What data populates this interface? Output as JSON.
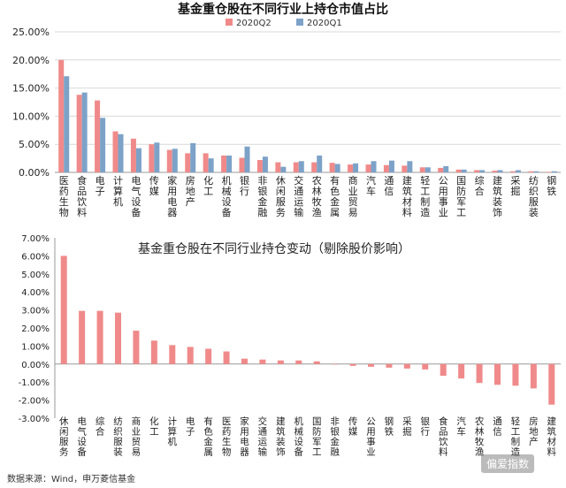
{
  "source_note": "数据来源：Wind，申万菱信基金",
  "watermark": "偏爱指数",
  "colors": {
    "q2": "#F08A8A",
    "q1": "#7DA2C8",
    "change": "#F08A8A",
    "axis": "#999999",
    "grid": "#d9d9d9"
  },
  "chart_data": [
    {
      "type": "bar",
      "title": "基金重仓股在不同行业上持仓市值占比",
      "legend_position": "top",
      "ylim": [
        0,
        25
      ],
      "yticks": [
        "0.00%",
        "5.00%",
        "10.00%",
        "15.00%",
        "20.00%",
        "25.00%"
      ],
      "grid": true,
      "categories": [
        "医药生物",
        "食品饮料",
        "电子",
        "计算机",
        "电气设备",
        "传媒",
        "家用电器",
        "房地产",
        "化工",
        "机械设备",
        "银行",
        "非银金融",
        "休闲服务",
        "交通运输",
        "农林牧渔",
        "有色金属",
        "商业贸易",
        "汽车",
        "通信",
        "建筑材料",
        "轻工制造",
        "公用事业",
        "国防军工",
        "综合",
        "建筑装饰",
        "采掘",
        "纺织服装",
        "钢铁"
      ],
      "series": [
        {
          "name": "2020Q2",
          "values": [
            20.0,
            13.8,
            12.8,
            7.3,
            6.0,
            5.0,
            4.0,
            3.4,
            3.4,
            3.0,
            2.6,
            2.2,
            1.8,
            1.8,
            1.8,
            1.7,
            1.4,
            1.4,
            1.3,
            1.2,
            0.9,
            0.8,
            0.5,
            0.4,
            0.3,
            0.2,
            0.2,
            0.1
          ]
        },
        {
          "name": "2020Q1",
          "values": [
            17.1,
            14.2,
            9.7,
            6.8,
            4.3,
            5.3,
            4.2,
            5.2,
            2.5,
            3.0,
            4.6,
            2.8,
            1.0,
            2.0,
            3.0,
            1.5,
            1.6,
            2.0,
            2.1,
            2.0,
            0.9,
            1.1,
            0.5,
            0.4,
            0.4,
            0.4,
            0.2,
            0.2
          ]
        }
      ]
    },
    {
      "type": "bar",
      "title": "基金重仓股在不同行业持仓变动（剔除股价影响）",
      "ylim": [
        -3,
        7
      ],
      "yticks": [
        "-3.00%",
        "-2.00%",
        "-1.00%",
        "0.00%",
        "1.00%",
        "2.00%",
        "3.00%",
        "4.00%",
        "5.00%",
        "6.00%",
        "7.00%"
      ],
      "categories": [
        "休闲服务",
        "电气设备",
        "综合",
        "纺织服装",
        "商业贸易",
        "化工",
        "计算机",
        "电子",
        "有色金属",
        "医药生物",
        "家用电器",
        "交通运输",
        "建筑装饰",
        "机械设备",
        "国防军工",
        "非银金融",
        "传媒",
        "公用事业",
        "钢铁",
        "采掘",
        "银行",
        "食品饮料",
        "汽车",
        "农林牧渔",
        "通信",
        "轻工制造",
        "房地产",
        "建筑材料"
      ],
      "values": [
        6.0,
        2.95,
        2.95,
        2.85,
        1.85,
        1.3,
        1.05,
        0.95,
        0.85,
        0.7,
        0.3,
        0.25,
        0.2,
        0.2,
        0.15,
        0.0,
        -0.1,
        -0.15,
        -0.2,
        -0.25,
        -0.3,
        -0.65,
        -0.8,
        -1.05,
        -1.15,
        -1.2,
        -1.35,
        -2.25
      ]
    }
  ]
}
